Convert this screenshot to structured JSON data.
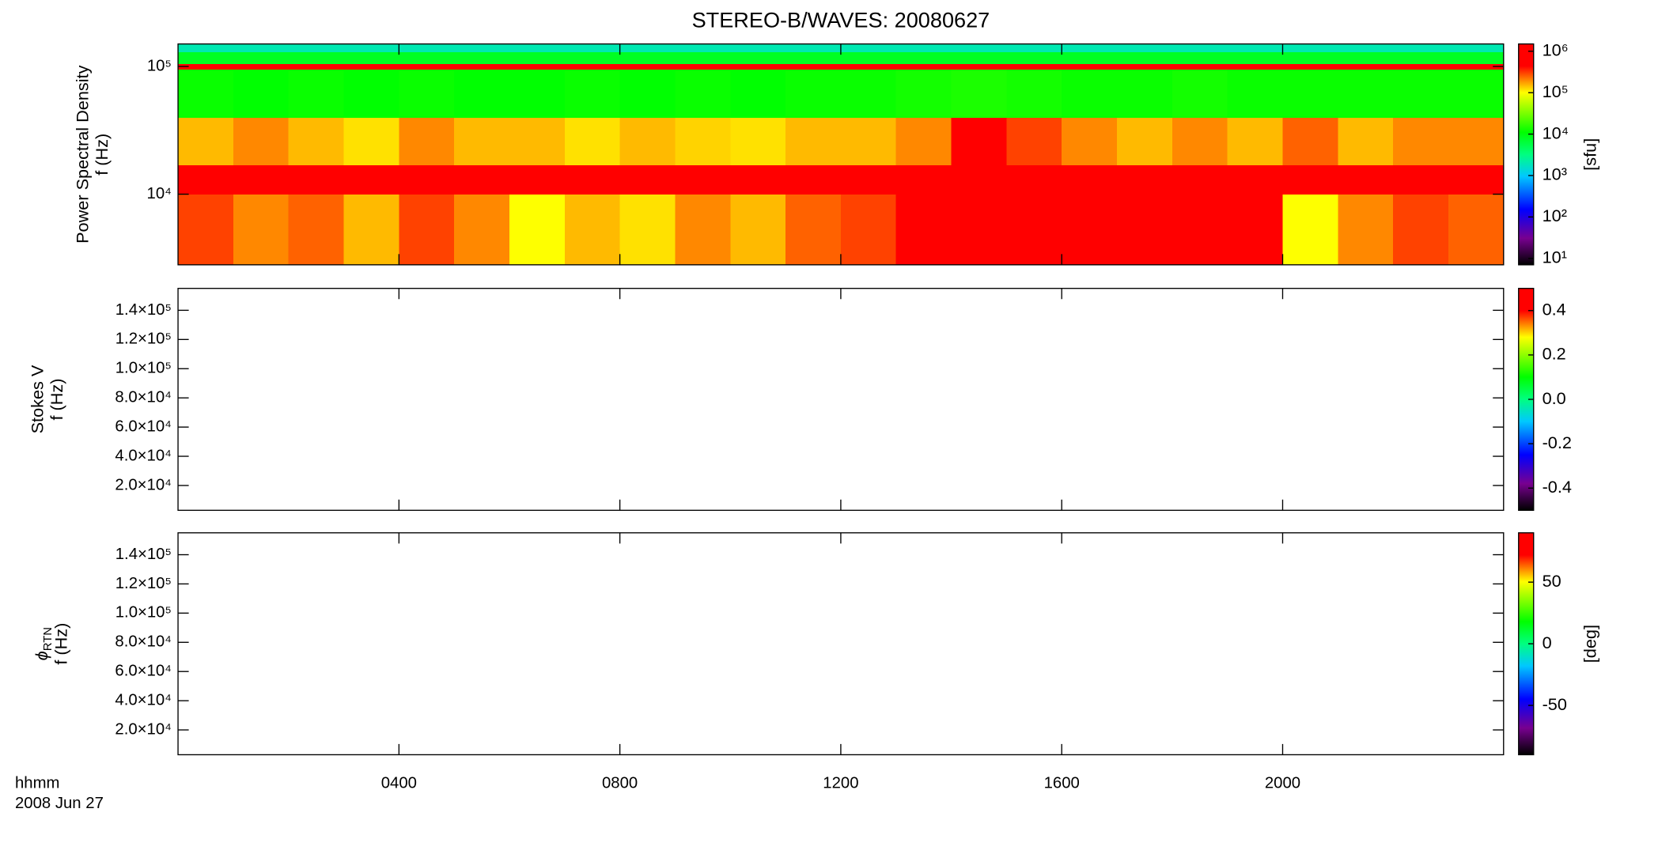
{
  "chart_data": [
    {
      "type": "heatmap",
      "title": "STEREO-B/WAVES: 20080627",
      "ylabel": [
        "Power Spectral Density",
        "f (Hz)"
      ],
      "ylog": true,
      "ylim": [
        2800,
        150000
      ],
      "yticks": [
        {
          "value": 10000,
          "label": "10⁴"
        },
        {
          "value": 100000,
          "label": "10⁵"
        }
      ],
      "x_edges": [
        0,
        1,
        2,
        3,
        4,
        5,
        6,
        7,
        8,
        9,
        10,
        11,
        12,
        13,
        14,
        15,
        16,
        17,
        18,
        19,
        20,
        21,
        22,
        23,
        24
      ],
      "y_edges": [
        2800,
        10000,
        17000,
        40000,
        95000,
        105000,
        130000,
        150000
      ],
      "values": [
        [
          300000,
          200000,
          250000,
          150000,
          300000,
          200000,
          100000,
          150000,
          120000,
          200000,
          150000,
          250000,
          300000,
          500000,
          800000,
          800000,
          900000,
          900000,
          800000,
          800000,
          100000,
          200000,
          300000,
          250000
        ],
        [
          600000,
          600000,
          550000,
          600000,
          650000,
          600000,
          550000,
          600000,
          600000,
          550000,
          600000,
          600000,
          650000,
          700000,
          800000,
          800000,
          800000,
          750000,
          800000,
          750000,
          700000,
          700000,
          700000,
          700000
        ],
        [
          150000,
          200000,
          150000,
          120000,
          200000,
          150000,
          150000,
          120000,
          150000,
          130000,
          120000,
          150000,
          150000,
          200000,
          500000,
          300000,
          200000,
          150000,
          200000,
          150000,
          250000,
          150000,
          200000,
          200000
        ],
        [
          12000,
          11000,
          12000,
          11000,
          12000,
          11000,
          11000,
          12000,
          11000,
          12000,
          11000,
          12000,
          12000,
          13000,
          14000,
          13000,
          12000,
          12000,
          13000,
          12000,
          12000,
          12000,
          12000,
          12000
        ],
        [
          800000,
          800000,
          800000,
          800000,
          800000,
          800000,
          800000,
          800000,
          800000,
          800000,
          800000,
          800000,
          800000,
          800000,
          800000,
          800000,
          800000,
          800000,
          800000,
          800000,
          800000,
          800000,
          800000,
          800000
        ],
        [
          8000,
          8000,
          8000,
          8000,
          8000,
          8000,
          8000,
          8000,
          8000,
          8000,
          8000,
          8000,
          8000,
          8000,
          8000,
          8000,
          8000,
          8000,
          8000,
          8000,
          8000,
          8000,
          8000,
          8000
        ],
        [
          2000,
          2000,
          2000,
          2000,
          2000,
          2000,
          2000,
          2000,
          2000,
          2000,
          2000,
          2000,
          2000,
          2000,
          2000,
          2000,
          2000,
          2000,
          2000,
          2000,
          2000,
          2000,
          2000,
          2000
        ]
      ],
      "colormap": "rainbow",
      "colorbar": {
        "label": "[sfu]",
        "log": true,
        "clim": [
          7,
          1500000
        ],
        "ticks": [
          {
            "value": 10,
            "label": "10¹"
          },
          {
            "value": 100,
            "label": "10²"
          },
          {
            "value": 1000,
            "label": "10³"
          },
          {
            "value": 10000,
            "label": "10⁴"
          },
          {
            "value": 100000,
            "label": "10⁵"
          },
          {
            "value": 1000000,
            "label": "10⁶"
          }
        ]
      }
    },
    {
      "type": "heatmap",
      "ylabel": [
        "Stokes V",
        "f (Hz)"
      ],
      "ylog": false,
      "ylim": [
        3000,
        155000
      ],
      "yticks": [
        {
          "value": 20000,
          "label": "2.0×10⁴"
        },
        {
          "value": 40000,
          "label": "4.0×10⁴"
        },
        {
          "value": 60000,
          "label": "6.0×10⁴"
        },
        {
          "value": 80000,
          "label": "8.0×10⁴"
        },
        {
          "value": 100000,
          "label": "1.0×10⁵"
        },
        {
          "value": 120000,
          "label": "1.2×10⁵"
        },
        {
          "value": 140000,
          "label": "1.4×10⁵"
        }
      ],
      "colormap": "rainbow",
      "colorbar": {
        "log": false,
        "clim": [
          -0.5,
          0.5
        ],
        "ticks": [
          -0.4,
          -0.2,
          {
            "value": 0,
            "label": "0.0"
          },
          0.2,
          0.4
        ]
      }
    },
    {
      "type": "heatmap",
      "ylabel": [
        {
          "text": "ϕ",
          "sub": "RTN"
        },
        "f (Hz)"
      ],
      "ylog": false,
      "ylim": [
        3000,
        155000
      ],
      "yticks": [
        {
          "value": 20000,
          "label": "2.0×10⁴"
        },
        {
          "value": 40000,
          "label": "4.0×10⁴"
        },
        {
          "value": 60000,
          "label": "6.0×10⁴"
        },
        {
          "value": 80000,
          "label": "8.0×10⁴"
        },
        {
          "value": 100000,
          "label": "1.0×10⁵"
        },
        {
          "value": 120000,
          "label": "1.2×10⁵"
        },
        {
          "value": 140000,
          "label": "1.4×10⁵"
        }
      ],
      "xlabel": "hhmm",
      "date": "2008 Jun 27",
      "xlim": [
        0,
        24
      ],
      "xticks": [
        {
          "value": 4,
          "label": "0400"
        },
        {
          "value": 8,
          "label": "0800"
        },
        {
          "value": 12,
          "label": "1200"
        },
        {
          "value": 16,
          "label": "1600"
        },
        {
          "value": 20,
          "label": "2000"
        }
      ],
      "colormap": "rainbow",
      "colorbar": {
        "label": "[deg]",
        "log": false,
        "clim": [
          -90,
          90
        ],
        "ticks": [
          -50,
          0,
          50
        ]
      }
    }
  ]
}
